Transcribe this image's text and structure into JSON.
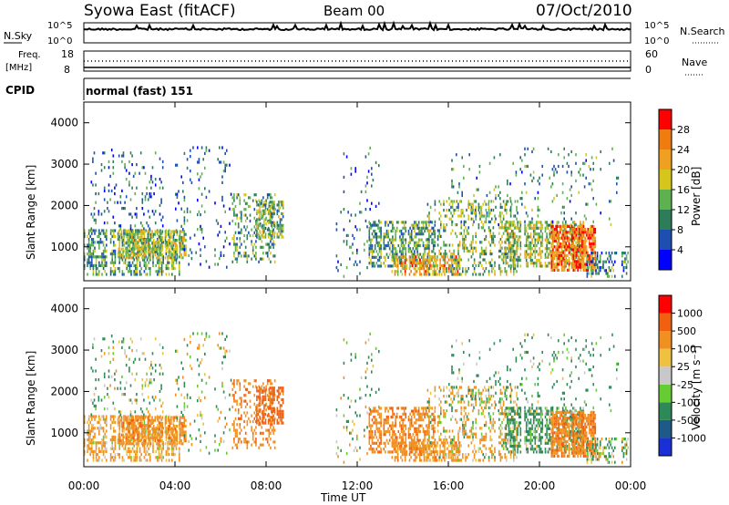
{
  "header": {
    "station": "Syowa East (fitACF)",
    "beam": "Beam 00",
    "date": "07/Oct/2010"
  },
  "noise_panel": {
    "left_label": "N.Sky",
    "right_label": "N.Search",
    "left_ticks": [
      "10^5",
      "10^0"
    ],
    "right_ticks": [
      "10^5",
      "10^0"
    ]
  },
  "freq_panel": {
    "left_label_top": "Freq.",
    "left_label_unit": "[MHz]",
    "left_ticks": [
      "18",
      "8"
    ],
    "right_label": "Nave",
    "right_ticks": [
      "60",
      "0"
    ]
  },
  "cpid": {
    "label": "CPID",
    "program": "normal (fast) 151"
  },
  "chart_data": [
    {
      "type": "heatmap",
      "name": "power",
      "ylabel": "Slant Range [km]",
      "ylim": [
        180,
        4500
      ],
      "yticks": [
        "1000",
        "2000",
        "3000",
        "4000"
      ],
      "xlim_hours": [
        0,
        24
      ],
      "colorbar": {
        "label": "Power [dB]",
        "ticks": [
          "4",
          "8",
          "12",
          "16",
          "20",
          "24",
          "28"
        ],
        "colors": [
          "#0000ff",
          "#1d4fb0",
          "#2d7d59",
          "#5eb14f",
          "#d6c61c",
          "#f0a020",
          "#f07b10",
          "#ff0000"
        ]
      }
    },
    {
      "type": "heatmap",
      "name": "velocity",
      "ylabel": "Slant Range [km]",
      "ylim": [
        180,
        4500
      ],
      "yticks": [
        "1000",
        "2000",
        "3000",
        "4000"
      ],
      "xlim_hours": [
        0,
        24
      ],
      "xlabel": "Time UT",
      "xticks": [
        "00:00",
        "04:00",
        "08:00",
        "12:00",
        "16:00",
        "20:00",
        "00:00"
      ],
      "colorbar": {
        "label": "Velocity [m s⁻¹]",
        "ticks": [
          "1000",
          "500",
          "100",
          "25",
          "-25",
          "-100",
          "-500",
          "-1000"
        ],
        "colors": [
          "#1a2fd6",
          "#1d5a8a",
          "#2d8a58",
          "#66cc33",
          "#c8c8c8",
          "#f0c040",
          "#f09020",
          "#f06010",
          "#ff0000"
        ]
      }
    }
  ],
  "echo_regions": [
    {
      "t0": 0.0,
      "t1": 4.2,
      "r0": 300,
      "r1": 1400,
      "density": 0.55,
      "pw": 12,
      "vel": -200
    },
    {
      "t0": 0.3,
      "t1": 3.5,
      "r0": 1400,
      "r1": 3400,
      "density": 0.12,
      "pw": 8,
      "vel": 100
    },
    {
      "t0": 1.5,
      "t1": 4.5,
      "r0": 700,
      "r1": 1400,
      "density": 0.7,
      "pw": 16,
      "vel": -300
    },
    {
      "t0": 4.0,
      "t1": 6.5,
      "r0": 400,
      "r1": 3400,
      "density": 0.08,
      "pw": 8,
      "vel": 50
    },
    {
      "t0": 6.5,
      "t1": 8.5,
      "r0": 600,
      "r1": 2300,
      "density": 0.35,
      "pw": 12,
      "vel": -400
    },
    {
      "t0": 7.5,
      "t1": 8.8,
      "r0": 1200,
      "r1": 2100,
      "density": 0.65,
      "pw": 14,
      "vel": -700
    },
    {
      "t0": 11.0,
      "t1": 13.0,
      "r0": 250,
      "r1": 3400,
      "density": 0.06,
      "pw": 8,
      "vel": 50
    },
    {
      "t0": 12.5,
      "t1": 15.5,
      "r0": 500,
      "r1": 1600,
      "density": 0.55,
      "pw": 12,
      "vel": -400
    },
    {
      "t0": 13.5,
      "t1": 16.5,
      "r0": 300,
      "r1": 800,
      "density": 0.6,
      "pw": 22,
      "vel": -300
    },
    {
      "t0": 15.0,
      "t1": 19.0,
      "r0": 300,
      "r1": 2100,
      "density": 0.35,
      "pw": 14,
      "vel": -100
    },
    {
      "t0": 18.5,
      "t1": 22.0,
      "r0": 500,
      "r1": 1600,
      "density": 0.6,
      "pw": 16,
      "vel": 200
    },
    {
      "t0": 20.5,
      "t1": 22.5,
      "r0": 400,
      "r1": 1500,
      "density": 0.8,
      "pw": 26,
      "vel": -400
    },
    {
      "t0": 16.0,
      "t1": 23.5,
      "r0": 1500,
      "r1": 3400,
      "density": 0.07,
      "pw": 10,
      "vel": 200
    },
    {
      "t0": 22.0,
      "t1": 24.0,
      "r0": 250,
      "r1": 900,
      "density": 0.4,
      "pw": 10,
      "vel": 100
    }
  ]
}
